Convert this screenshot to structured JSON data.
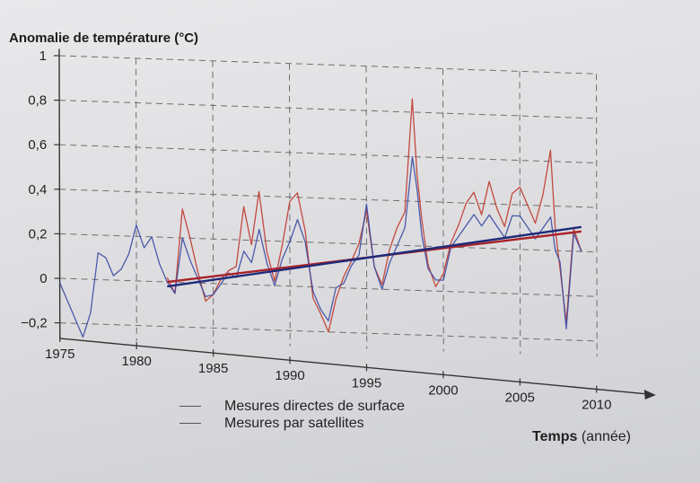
{
  "chart_data": {
    "type": "line",
    "ylabel": "Anomalie de température (°C)",
    "xlabel_bold": "Temps",
    "xlabel_rest": " (année)",
    "xlim": [
      1975,
      2010
    ],
    "ylim": [
      -0.25,
      1
    ],
    "x_ticks": [
      "1975",
      "1980",
      "1985",
      "1990",
      "1995",
      "2000",
      "2005",
      "2010"
    ],
    "y_ticks": [
      "1",
      "0,8",
      "0,6",
      "0,4",
      "0,2",
      "0",
      "−0,2"
    ],
    "series": [
      {
        "name": "Mesures directes de surface",
        "color": "#c0392b",
        "x": [
          1982,
          1982.5,
          1983,
          1983.5,
          1984,
          1984.5,
          1985,
          1985.5,
          1986,
          1986.5,
          1987,
          1987.5,
          1988,
          1988.5,
          1989,
          1989.5,
          1990,
          1990.5,
          1991,
          1991.5,
          1992,
          1992.5,
          1993,
          1993.5,
          1994,
          1994.5,
          1995,
          1995.5,
          1996,
          1996.5,
          1997,
          1997.5,
          1998,
          1998.3,
          1998.6,
          1999,
          1999.5,
          2000,
          2000.5,
          2001,
          2001.5,
          2002,
          2002.5,
          2003,
          2003.5,
          2004,
          2004.5,
          2005,
          2005.5,
          2006,
          2006.5,
          2007,
          2007.3,
          2007.6,
          2008,
          2008.5,
          2009
        ],
        "values": [
          0.02,
          -0.05,
          0.33,
          0.2,
          0.05,
          -0.08,
          -0.05,
          0.02,
          0.06,
          0.08,
          0.35,
          0.18,
          0.42,
          0.15,
          0.02,
          0.18,
          0.38,
          0.42,
          0.25,
          -0.05,
          -0.12,
          -0.2,
          -0.05,
          0.05,
          0.12,
          0.2,
          0.35,
          0.1,
          0.02,
          0.18,
          0.28,
          0.35,
          0.86,
          0.52,
          0.32,
          0.12,
          0.02,
          0.08,
          0.22,
          0.3,
          0.4,
          0.45,
          0.35,
          0.5,
          0.38,
          0.3,
          0.45,
          0.48,
          0.4,
          0.32,
          0.45,
          0.65,
          0.3,
          0.12,
          -0.12,
          0.3,
          0.2
        ],
        "trend": [
          0.0,
          0.29
        ]
      },
      {
        "name": "Mesures par satellites",
        "color": "#3b4aa3",
        "x": [
          1975,
          1975.5,
          1976,
          1976.5,
          1977,
          1977.5,
          1978,
          1978.5,
          1979,
          1979.5,
          1980,
          1980.5,
          1981,
          1981.5,
          1982,
          1982.5,
          1983,
          1983.5,
          1984,
          1984.5,
          1985,
          1985.5,
          1986,
          1986.5,
          1987,
          1987.5,
          1988,
          1988.5,
          1989,
          1989.5,
          1990,
          1990.5,
          1991,
          1991.5,
          1992,
          1992.5,
          1993,
          1993.5,
          1994,
          1994.5,
          1995,
          1995.5,
          1996,
          1996.5,
          1997,
          1997.5,
          1998,
          1998.3,
          1998.6,
          1999,
          1999.5,
          2000,
          2000.5,
          2001,
          2001.5,
          2002,
          2002.5,
          2003,
          2003.5,
          2004,
          2004.5,
          2005,
          2005.5,
          2006,
          2006.5,
          2007,
          2007.3,
          2007.6,
          2008,
          2008.5,
          2009
        ],
        "values": [
          -0.02,
          -0.1,
          -0.18,
          -0.26,
          -0.15,
          0.12,
          0.1,
          0.02,
          0.05,
          0.12,
          0.25,
          0.15,
          0.2,
          0.08,
          0.0,
          -0.05,
          0.2,
          0.1,
          0.02,
          -0.06,
          -0.05,
          0.0,
          0.05,
          0.03,
          0.15,
          0.1,
          0.25,
          0.1,
          0.0,
          0.12,
          0.2,
          0.3,
          0.2,
          -0.02,
          -0.1,
          -0.15,
          0.0,
          0.02,
          0.1,
          0.15,
          0.38,
          0.1,
          0.0,
          0.12,
          0.2,
          0.28,
          0.6,
          0.45,
          0.25,
          0.1,
          0.05,
          0.05,
          0.2,
          0.25,
          0.3,
          0.35,
          0.3,
          0.35,
          0.3,
          0.25,
          0.35,
          0.35,
          0.3,
          0.25,
          0.3,
          0.35,
          0.2,
          0.15,
          -0.15,
          0.28,
          0.2
        ],
        "trend": [
          -0.02,
          0.31
        ]
      }
    ],
    "trend_x": [
      1982,
      2009
    ]
  }
}
